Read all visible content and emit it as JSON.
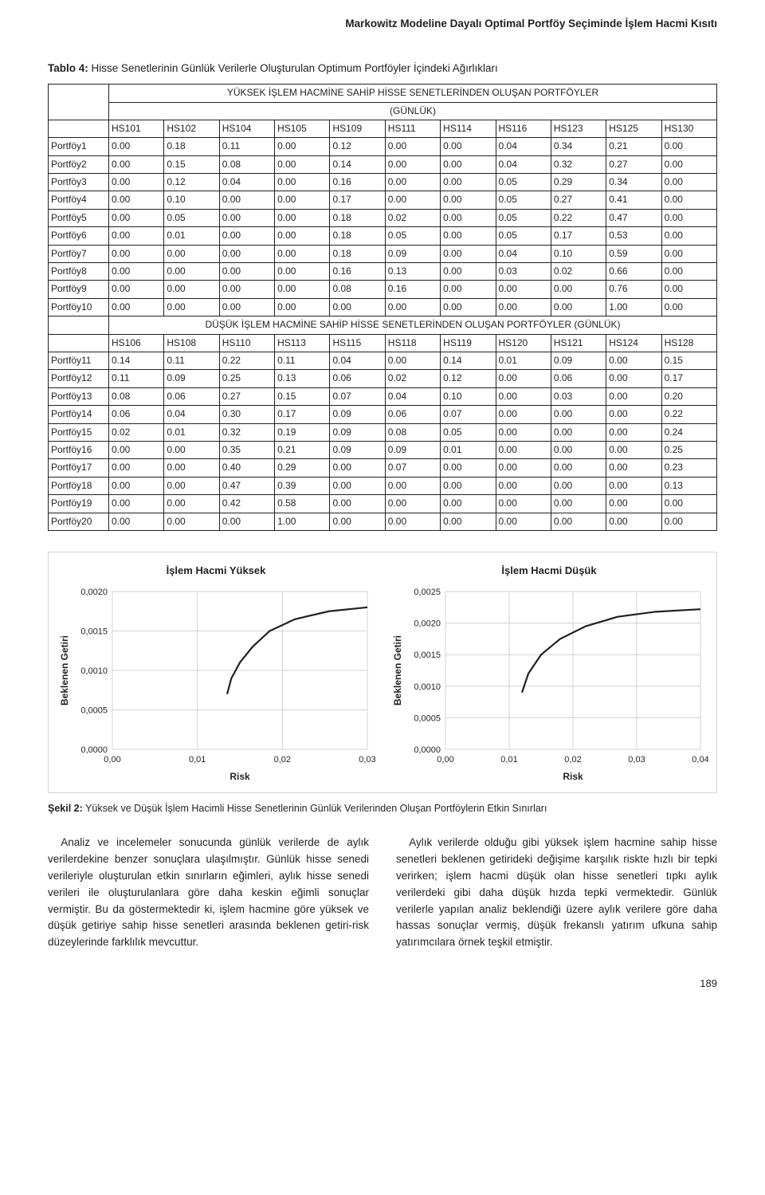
{
  "running_head": "Markowitz Modeline Dayalı Optimal Portföy Seçiminde İşlem Hacmi Kısıtı",
  "table": {
    "title_prefix": "Tablo 4:",
    "title_text": " Hisse Senetlerinin Günlük Verilerle Oluşturulan Optimum Portföyler İçindeki Ağırlıkları",
    "section_a_head_line1": "YÜKSEK İŞLEM HACMİNE SAHİP HİSSE SENETLERİNDEN OLUŞAN PORTFÖYLER",
    "section_a_head_line2": "(GÜNLÜK)",
    "cols_a": [
      "HS101",
      "HS102",
      "HS104",
      "HS105",
      "HS109",
      "HS111",
      "HS114",
      "HS116",
      "HS123",
      "HS125",
      "HS130"
    ],
    "rows_a": [
      {
        "label": "Portföy1",
        "v": [
          "0.00",
          "0.18",
          "0.11",
          "0.00",
          "0.12",
          "0.00",
          "0.00",
          "0.04",
          "0.34",
          "0.21",
          "0.00"
        ]
      },
      {
        "label": "Portföy2",
        "v": [
          "0.00",
          "0.15",
          "0.08",
          "0.00",
          "0.14",
          "0.00",
          "0.00",
          "0.04",
          "0.32",
          "0.27",
          "0.00"
        ]
      },
      {
        "label": "Portföy3",
        "v": [
          "0.00",
          "0.12",
          "0.04",
          "0.00",
          "0.16",
          "0.00",
          "0.00",
          "0.05",
          "0.29",
          "0.34",
          "0.00"
        ]
      },
      {
        "label": "Portföy4",
        "v": [
          "0.00",
          "0.10",
          "0.00",
          "0.00",
          "0.17",
          "0.00",
          "0.00",
          "0.05",
          "0.27",
          "0.41",
          "0.00"
        ]
      },
      {
        "label": "Portföy5",
        "v": [
          "0.00",
          "0.05",
          "0.00",
          "0.00",
          "0.18",
          "0.02",
          "0.00",
          "0.05",
          "0.22",
          "0.47",
          "0.00"
        ]
      },
      {
        "label": "Portföy6",
        "v": [
          "0.00",
          "0.01",
          "0.00",
          "0.00",
          "0.18",
          "0.05",
          "0.00",
          "0.05",
          "0.17",
          "0.53",
          "0.00"
        ]
      },
      {
        "label": "Portföy7",
        "v": [
          "0.00",
          "0.00",
          "0.00",
          "0.00",
          "0.18",
          "0.09",
          "0.00",
          "0.04",
          "0.10",
          "0.59",
          "0.00"
        ]
      },
      {
        "label": "Portföy8",
        "v": [
          "0.00",
          "0.00",
          "0.00",
          "0.00",
          "0.16",
          "0.13",
          "0.00",
          "0.03",
          "0.02",
          "0.66",
          "0.00"
        ]
      },
      {
        "label": "Portföy9",
        "v": [
          "0.00",
          "0.00",
          "0.00",
          "0.00",
          "0.08",
          "0.16",
          "0.00",
          "0.00",
          "0.00",
          "0.76",
          "0.00"
        ]
      },
      {
        "label": "Portföy10",
        "v": [
          "0.00",
          "0.00",
          "0.00",
          "0.00",
          "0.00",
          "0.00",
          "0.00",
          "0.00",
          "0.00",
          "1.00",
          "0.00"
        ]
      }
    ],
    "section_b_head": "DÜŞÜK İŞLEM HACMİNE SAHİP HİSSE SENETLERİNDEN OLUŞAN PORTFÖYLER (GÜNLÜK)",
    "cols_b": [
      "HS106",
      "HS108",
      "HS110",
      "HS113",
      "HS115",
      "HS118",
      "HS119",
      "HS120",
      "HS121",
      "HS124",
      "HS128"
    ],
    "rows_b": [
      {
        "label": "Portföy11",
        "v": [
          "0.14",
          "0.11",
          "0.22",
          "0.11",
          "0.04",
          "0.00",
          "0.14",
          "0.01",
          "0.09",
          "0.00",
          "0.15"
        ]
      },
      {
        "label": "Portföy12",
        "v": [
          "0.11",
          "0.09",
          "0.25",
          "0.13",
          "0.06",
          "0.02",
          "0.12",
          "0.00",
          "0.06",
          "0.00",
          "0.17"
        ]
      },
      {
        "label": "Portföy13",
        "v": [
          "0.08",
          "0.06",
          "0.27",
          "0.15",
          "0.07",
          "0.04",
          "0.10",
          "0.00",
          "0.03",
          "0.00",
          "0.20"
        ]
      },
      {
        "label": "Portföy14",
        "v": [
          "0.06",
          "0.04",
          "0.30",
          "0.17",
          "0.09",
          "0.06",
          "0.07",
          "0.00",
          "0.00",
          "0.00",
          "0.22"
        ]
      },
      {
        "label": "Portföy15",
        "v": [
          "0.02",
          "0.01",
          "0.32",
          "0.19",
          "0.09",
          "0.08",
          "0.05",
          "0.00",
          "0.00",
          "0.00",
          "0.24"
        ]
      },
      {
        "label": "Portföy16",
        "v": [
          "0.00",
          "0.00",
          "0.35",
          "0.21",
          "0.09",
          "0.09",
          "0.01",
          "0.00",
          "0.00",
          "0.00",
          "0.25"
        ]
      },
      {
        "label": "Portföy17",
        "v": [
          "0.00",
          "0.00",
          "0.40",
          "0.29",
          "0.00",
          "0.07",
          "0.00",
          "0.00",
          "0.00",
          "0.00",
          "0.23"
        ]
      },
      {
        "label": "Portföy18",
        "v": [
          "0.00",
          "0.00",
          "0.47",
          "0.39",
          "0.00",
          "0.00",
          "0.00",
          "0.00",
          "0.00",
          "0.00",
          "0.13"
        ]
      },
      {
        "label": "Portföy19",
        "v": [
          "0.00",
          "0.00",
          "0.42",
          "0.58",
          "0.00",
          "0.00",
          "0.00",
          "0.00",
          "0.00",
          "0.00",
          "0.00"
        ]
      },
      {
        "label": "Portföy20",
        "v": [
          "0.00",
          "0.00",
          "0.00",
          "1.00",
          "0.00",
          "0.00",
          "0.00",
          "0.00",
          "0.00",
          "0.00",
          "0.00"
        ]
      }
    ]
  },
  "chart_left": {
    "title": "İşlem Hacmi Yüksek",
    "ylabel": "Beklenen Getiri",
    "xlabel": "Risk",
    "yticks": [
      "0,0000",
      "0,0005",
      "0,0010",
      "0,0015",
      "0,0020"
    ],
    "xticks": [
      "0,00",
      "0,01",
      "0,02",
      "0,03"
    ],
    "ylim": [
      0,
      0.002
    ],
    "xlim": [
      0,
      0.03
    ],
    "curve_color": "#231f20",
    "grid_color": "#d1d3d4",
    "bg": "#ffffff",
    "points": [
      [
        0.0135,
        0.0007
      ],
      [
        0.014,
        0.0009
      ],
      [
        0.015,
        0.0011
      ],
      [
        0.0165,
        0.0013
      ],
      [
        0.0185,
        0.0015
      ],
      [
        0.0215,
        0.00165
      ],
      [
        0.0255,
        0.00175
      ],
      [
        0.03,
        0.0018
      ]
    ]
  },
  "chart_right": {
    "title": "İşlem Hacmi Düşük",
    "ylabel": "Beklenen Getiri",
    "xlabel": "Risk",
    "yticks": [
      "0,0000",
      "0,0005",
      "0,0010",
      "0,0015",
      "0,0020",
      "0,0025"
    ],
    "xticks": [
      "0,00",
      "0,01",
      "0,02",
      "0,03",
      "0,04"
    ],
    "ylim": [
      0,
      0.0025
    ],
    "xlim": [
      0,
      0.04
    ],
    "curve_color": "#231f20",
    "grid_color": "#d1d3d4",
    "bg": "#ffffff",
    "points": [
      [
        0.012,
        0.0009
      ],
      [
        0.013,
        0.0012
      ],
      [
        0.015,
        0.0015
      ],
      [
        0.018,
        0.00175
      ],
      [
        0.022,
        0.00195
      ],
      [
        0.027,
        0.0021
      ],
      [
        0.033,
        0.00218
      ],
      [
        0.04,
        0.00222
      ]
    ]
  },
  "fig_caption_prefix": "Şekil 2:",
  "fig_caption_text": " Yüksek ve Düşük İşlem Hacimli Hisse Senetlerinin Günlük Verilerinden Oluşan Portföylerin Etkin Sınırları",
  "body_para_1": "Analiz ve incelemeler sonucunda günlük verilerde de aylık verilerdekine benzer sonuçlara ulaşılmıştır. Günlük hisse senedi verileriyle oluşturulan etkin sınırların eğimleri, aylık hisse senedi verileri ile oluşturulanlara göre daha keskin eğimli sonuçlar vermiştir. Bu da göstermektedir ki, işlem hacmine göre yüksek ve düşük getiriye sahip hisse senetleri arasında beklenen getiri-risk düzeylerinde farklılık mevcuttur.",
  "body_para_2": "Aylık verilerde olduğu gibi yüksek işlem hacmine sahip hisse senetleri beklenen getirideki değişime karşılık riskte hızlı bir tepki verirken; işlem hacmi düşük olan hisse senetleri tıpkı aylık verilerdeki gibi daha düşük hızda tepki vermektedir. Günlük verilerle yapılan analiz beklendiği üzere aylık verilere göre daha hassas sonuçlar vermiş, düşük frekanslı yatırım ufkuna sahip yatırımcılara örnek teşkil etmiştir.",
  "page_number": "189"
}
